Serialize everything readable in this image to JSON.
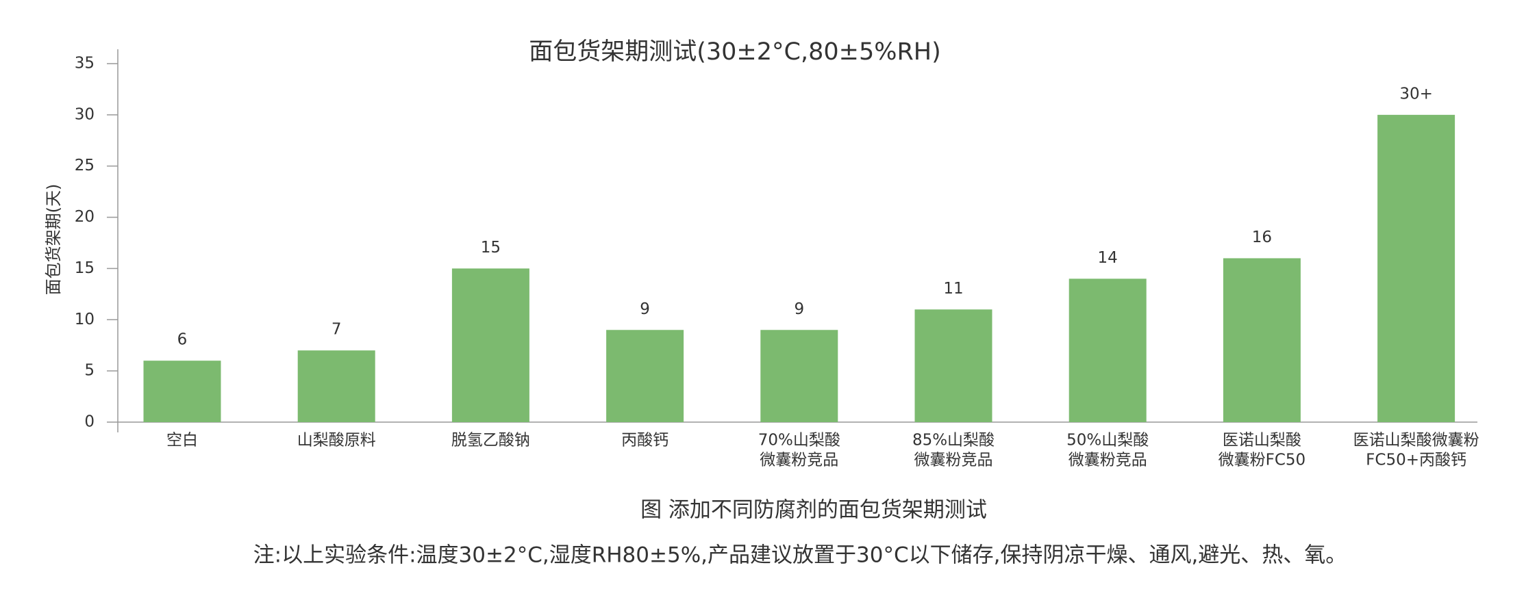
{
  "chart_data": {
    "type": "bar",
    "title": "面包货架期测试(30±2°C,80±5%RH)",
    "y_label": "面包货架期(天)",
    "categories": [
      [
        "空白"
      ],
      [
        "山梨酸原料"
      ],
      [
        "脱氢乙酸钠"
      ],
      [
        "丙酸钙"
      ],
      [
        "70%山梨酸",
        "微囊粉竞品"
      ],
      [
        "85%山梨酸",
        "微囊粉竞品"
      ],
      [
        "50%山梨酸",
        "微囊粉竞品"
      ],
      [
        "医诺山梨酸",
        "微囊粉FC50"
      ],
      [
        "医诺山梨酸微囊粉",
        "FC50+丙酸钙"
      ]
    ],
    "values": [
      6,
      7,
      15,
      9,
      9,
      11,
      14,
      16,
      30
    ],
    "value_labels": [
      "6",
      "7",
      "15",
      "9",
      "9",
      "11",
      "14",
      "16",
      "30+"
    ],
    "color": "#7cba6f",
    "ylim": [
      0,
      35
    ],
    "yticks": [
      0,
      5,
      10,
      15,
      20,
      25,
      30,
      35
    ],
    "grid": false,
    "caption": "图 添加不同防腐剂的面包货架期测试",
    "note": "注:以上实验条件:温度30±2°C,湿度RH80±5%,产品建议放置于30°C以下储存,保持阴凉干燥、通风,避光、热、氧。"
  }
}
